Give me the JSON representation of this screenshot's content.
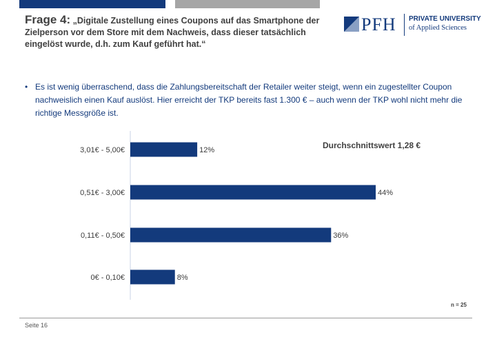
{
  "title": {
    "prefix": "Frage 4:",
    "text": "„Digitale Zustellung eines Coupons auf das Smartphone der Zielperson vor dem Store mit dem Nachweis, dass dieser tatsächlich eingelöst wurde, d.h. zum Kauf geführt hat.“"
  },
  "logo": {
    "mark": "PFH",
    "line1": "PRIVATE UNIVERSITY",
    "line2": "of Applied Sciences",
    "color": "#133a7c"
  },
  "bullet": {
    "symbol": "•",
    "text": "Es ist wenig überraschend, dass die Zahlungsbereitschaft der Retailer weiter steigt, wenn ein zugestellter Coupon nachweislich einen Kauf auslöst. Hier erreicht der TKP bereits fast 1.300 € – auch wenn der TKP wohl nicht mehr die richtige Messgröße ist."
  },
  "chart_data": {
    "type": "bar",
    "orientation": "horizontal",
    "categories": [
      "3,01€ - 5,00€",
      "0,51€ - 3,00€",
      "0,11€ - 0,50€",
      "0€ - 0,10€"
    ],
    "values": [
      12,
      44,
      36,
      8
    ],
    "value_labels": [
      "12%",
      "44%",
      "36%",
      "8%"
    ],
    "unit": "%",
    "xlim": [
      0,
      50
    ],
    "color": "#133a7c",
    "annotation": "Durchschnittswert 1,28 €",
    "grid": false
  },
  "sample": "n = 25",
  "footer": {
    "page": "Seite 16"
  }
}
